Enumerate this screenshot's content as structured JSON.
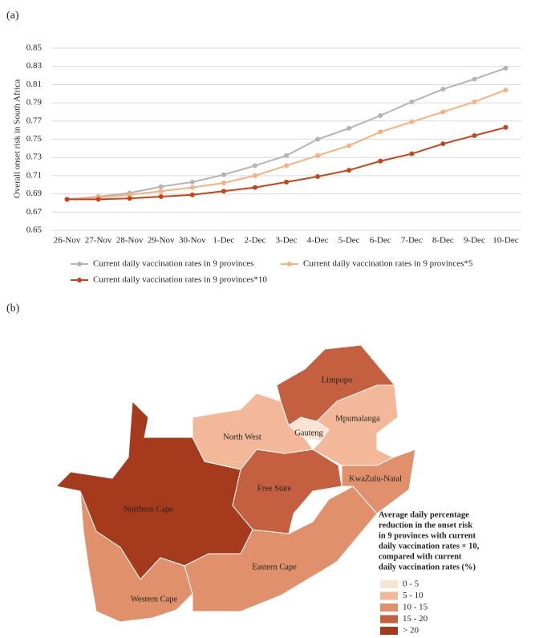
{
  "chart_data": [
    {
      "type": "line",
      "panel_label": "(a)",
      "ylabel": "Overall onset risk in South Africa",
      "categories": [
        "26-Nov",
        "27-Nov",
        "28-Nov",
        "29-Nov",
        "30-Nov",
        "1-Dec",
        "2-Dec",
        "3-Dec",
        "4-Dec",
        "5-Dec",
        "6-Dec",
        "7-Dec",
        "8-Dec",
        "9-Dec",
        "10-Dec"
      ],
      "series": [
        {
          "name": "Current daily vaccination rates in 9 provinces",
          "color": "#b4b4b4",
          "values": [
            0.684,
            0.687,
            0.691,
            0.698,
            0.703,
            0.711,
            0.721,
            0.732,
            0.75,
            0.762,
            0.776,
            0.791,
            0.805,
            0.816,
            0.828
          ]
        },
        {
          "name": "Current daily vaccination rates in 9 provinces*5",
          "color": "#f7b07e",
          "values": [
            0.684,
            0.686,
            0.689,
            0.693,
            0.697,
            0.702,
            0.71,
            0.721,
            0.732,
            0.743,
            0.758,
            0.769,
            0.78,
            0.791,
            0.804
          ]
        },
        {
          "name": "Current daily vaccination rates in 9 provinces*10",
          "color": "#c8431a",
          "values": [
            0.684,
            0.684,
            0.685,
            0.687,
            0.689,
            0.693,
            0.697,
            0.703,
            0.709,
            0.716,
            0.726,
            0.734,
            0.745,
            0.754,
            0.763
          ]
        }
      ],
      "ylim": [
        0.65,
        0.85
      ],
      "yticks": [
        0.65,
        0.67,
        0.69,
        0.71,
        0.73,
        0.75,
        0.77,
        0.79,
        0.81,
        0.83,
        0.85
      ],
      "grid": true
    },
    {
      "type": "map",
      "panel_label": "(b)",
      "legend_title_lines": [
        "Average daily percentage",
        "reduction in the onset risk",
        "in 9 provinces with current",
        "daily vaccination rates × 10,",
        "compared with current",
        "daily vaccination rates (%)"
      ],
      "classes": [
        {
          "label": "0 - 5",
          "color": "#fbe3d2"
        },
        {
          "label": "5 - 10",
          "color": "#f2b899"
        },
        {
          "label": "10 - 15",
          "color": "#e0906b"
        },
        {
          "label": "15 - 20",
          "color": "#c4603f"
        },
        {
          "label": "> 20",
          "color": "#a63a1c"
        }
      ],
      "regions": [
        {
          "name": "Northern Cape",
          "class": 4
        },
        {
          "name": "Western Cape",
          "class": 2
        },
        {
          "name": "Eastern Cape",
          "class": 2
        },
        {
          "name": "Free State",
          "class": 3
        },
        {
          "name": "KwaZulu-Natal",
          "class": 2
        },
        {
          "name": "North West",
          "class": 1
        },
        {
          "name": "Gauteng",
          "class": 0
        },
        {
          "name": "Mpumalanga",
          "class": 1
        },
        {
          "name": "Limpopo",
          "class": 3
        }
      ]
    }
  ]
}
